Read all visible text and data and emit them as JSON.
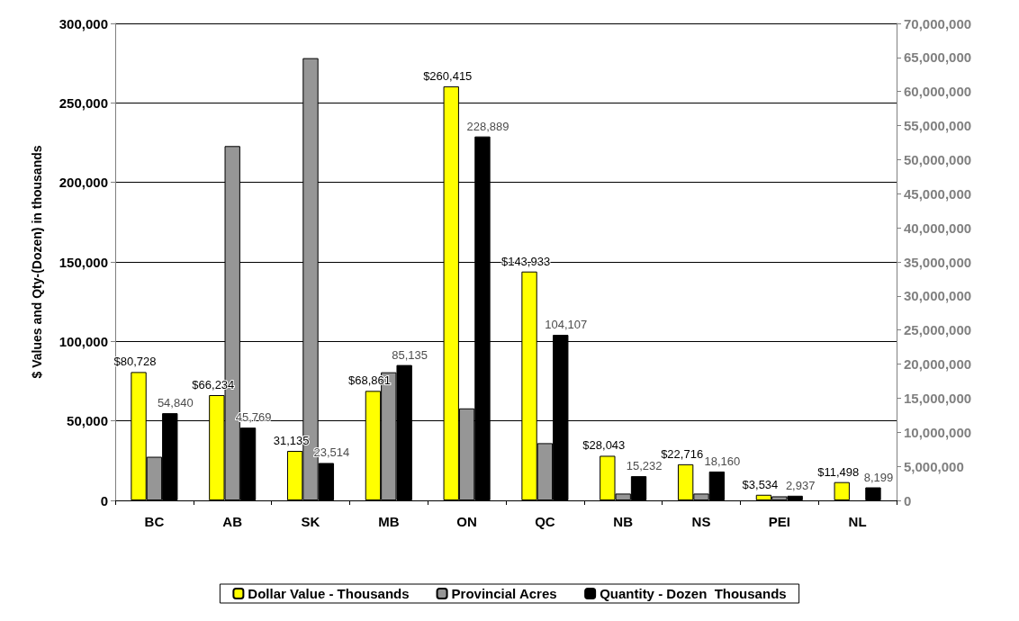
{
  "chart_data": {
    "type": "bar",
    "ylabel": "$ Values and Qty-(Dozen) in thousands",
    "categories": [
      "BC",
      "AB",
      "SK",
      "MB",
      "ON",
      "QC",
      "NB",
      "NS",
      "PEI",
      "NL"
    ],
    "series": [
      {
        "name": "Dollar Value - Thousands",
        "color": "#ffff00",
        "values": [
          80728,
          66234,
          31135,
          68861,
          260415,
          143933,
          28043,
          22716,
          3534,
          11498
        ],
        "value_labels": [
          "$80,728",
          "$66,234",
          "31,135",
          "$68,861",
          "$260,415",
          "$143,933",
          "$28,043",
          "$22,716",
          "$3,534",
          "$11,498"
        ]
      },
      {
        "name": "Provincial Acres",
        "color": "#969696",
        "axis": "y2",
        "values": [
          6400000,
          52000000,
          64900000,
          18800000,
          13500000,
          8400000,
          1000000,
          1000000,
          600000,
          null
        ]
      },
      {
        "name": "Quantity - Dozen  Thousands",
        "color": "#000000",
        "values": [
          54840,
          45769,
          23514,
          85135,
          228889,
          104107,
          15232,
          18160,
          2937,
          8199
        ],
        "value_labels": [
          "54,840",
          "45,769",
          "23,514",
          "85,135",
          "228,889",
          "104,107",
          "15,232",
          "18,160",
          "2,937",
          "8,199"
        ]
      }
    ],
    "ylim": [
      0,
      300000
    ],
    "yticks": [
      {
        "value": 0,
        "label": "0"
      },
      {
        "value": 50000,
        "label": "50,000"
      },
      {
        "value": 100000,
        "label": "100,000"
      },
      {
        "value": 150000,
        "label": "150,000"
      },
      {
        "value": 200000,
        "label": "200,000"
      },
      {
        "value": 250000,
        "label": "250,000"
      },
      {
        "value": 300000,
        "label": "300,000"
      }
    ],
    "y2lim": [
      0,
      70000000
    ],
    "y2ticks": [
      {
        "value": 0,
        "label": "0"
      },
      {
        "value": 5000000,
        "label": "5,000,000"
      },
      {
        "value": 10000000,
        "label": "10,000,000"
      },
      {
        "value": 15000000,
        "label": "15,000,000"
      },
      {
        "value": 20000000,
        "label": "20,000,000"
      },
      {
        "value": 25000000,
        "label": "25,000,000"
      },
      {
        "value": 30000000,
        "label": "30,000,000"
      },
      {
        "value": 35000000,
        "label": "35,000,000"
      },
      {
        "value": 40000000,
        "label": "40,000,000"
      },
      {
        "value": 45000000,
        "label": "45,000,000"
      },
      {
        "value": 50000000,
        "label": "50,000,000"
      },
      {
        "value": 55000000,
        "label": "55,000,000"
      },
      {
        "value": 60000000,
        "label": "60,000,000"
      },
      {
        "value": 65000000,
        "label": "65,000,000"
      },
      {
        "value": 70000000,
        "label": "70,000,000"
      }
    ],
    "grid": "y",
    "legend": "bottom"
  }
}
